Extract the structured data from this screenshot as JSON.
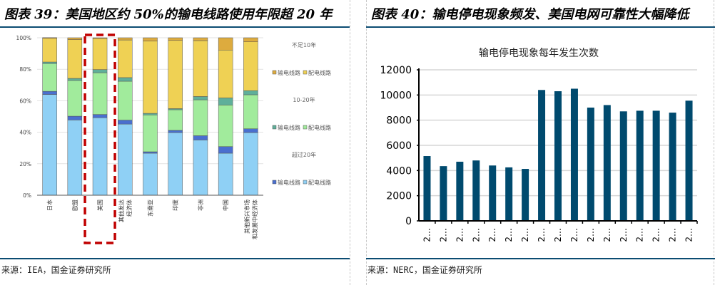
{
  "left_panel": {
    "title": "图表 39：美国地区约 50%的输电线路使用年限超 20 年",
    "source": "来源：IEA，国金证券研究所"
  },
  "right_panel": {
    "title": "图表 40：输电停电现象频发、美国电网可靠性大幅降低",
    "source": "来源：NERC，国金证券研究所"
  },
  "chart_data": [
    {
      "type": "bar",
      "stacked": true,
      "title": "",
      "xlabel": "",
      "ylabel": "",
      "ylim": [
        0,
        100
      ],
      "y_ticks": [
        "0%",
        "20%",
        "40%",
        "60%",
        "80%",
        "100%"
      ],
      "categories": [
        "日本",
        "欧盟",
        "美国",
        "其他发达经济体",
        "东南亚",
        "印度",
        "非洲",
        "中国",
        "其他新兴市场和发展中经济体"
      ],
      "category_lines": [
        [
          "日本"
        ],
        [
          "欧盟"
        ],
        [
          "美国"
        ],
        [
          "其他发达",
          "经济体"
        ],
        [
          "东南亚"
        ],
        [
          "印度"
        ],
        [
          "非洲"
        ],
        [
          "中国"
        ],
        [
          "其他新兴市场",
          "和发展中经济体"
        ]
      ],
      "highlight_category": "美国",
      "legend_groups": [
        {
          "label": "不足10年",
          "items": [
            "输电线路",
            "配电线路"
          ]
        },
        {
          "label": "10-20年",
          "items": [
            "输电线路",
            "配电线路"
          ]
        },
        {
          "label": "超过20年",
          "items": [
            "输电线路",
            "配电线路"
          ]
        }
      ],
      "legend_position": "right",
      "series": [
        {
          "name": "超过20年 配电线路",
          "color": "#8fd0f5",
          "values": [
            64,
            47.8,
            49.2,
            45.2,
            26.7,
            39.8,
            35.1,
            26.7,
            39.8
          ]
        },
        {
          "name": "超过20年 输电线路",
          "color": "#4a6fcf",
          "values": [
            2,
            2.4,
            2.1,
            2.5,
            0.9,
            1.4,
            2.7,
            4.2,
            2.4
          ]
        },
        {
          "name": "10-20年 配电线路",
          "color": "#a1eb9c",
          "values": [
            17.6,
            22.7,
            26.5,
            24.7,
            23.4,
            13.1,
            22.8,
            26.4,
            21.6
          ]
        },
        {
          "name": "10-20年 输电线路",
          "color": "#5faf9a",
          "values": [
            1,
            1.3,
            2,
            2.3,
            1,
            0.7,
            2.1,
            4.5,
            2.6
          ]
        },
        {
          "name": "不足10年 配电线路",
          "color": "#efd154",
          "values": [
            15,
            24.6,
            19.7,
            23.9,
            45.9,
            43.3,
            35.5,
            30.4,
            31
          ]
        },
        {
          "name": "不足10年 输电线路",
          "color": "#ddab3e",
          "values": [
            0.5,
            1.2,
            0.5,
            1.4,
            2.1,
            1.7,
            1.8,
            7.8,
            2.6
          ]
        }
      ]
    },
    {
      "type": "bar",
      "title": "输电停电现象每年发生次数",
      "xlabel": "",
      "ylabel": "",
      "ylim": [
        0,
        12000
      ],
      "y_ticks": [
        "0",
        "2000",
        "4000",
        "6000",
        "8000",
        "10000",
        "12000"
      ],
      "categories": [
        "2…",
        "2…",
        "2…",
        "2…",
        "2…",
        "2…",
        "2…",
        "2…",
        "2…",
        "2…",
        "2…",
        "2…",
        "2…",
        "2…",
        "2…",
        "2…",
        "2…"
      ],
      "values": [
        5150,
        4350,
        4700,
        4800,
        4400,
        4250,
        4130,
        10400,
        10300,
        10500,
        9000,
        9200,
        8700,
        8750,
        8750,
        8600,
        9550
      ],
      "color": "#004a6e",
      "grid": true
    }
  ]
}
